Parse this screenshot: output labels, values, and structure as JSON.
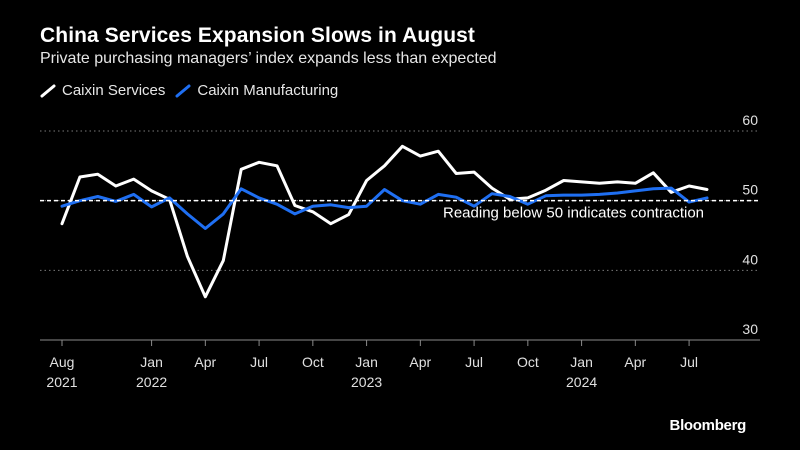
{
  "chart_data": {
    "type": "line",
    "title": "China Services Expansion Slows in August",
    "subtitle": "Private purchasing managers’ index expands less than expected",
    "source": "Bloomberg",
    "ylim": [
      30,
      60
    ],
    "yticks": [
      60,
      50,
      40,
      30
    ],
    "reference_line": {
      "value": 50,
      "label": "Reading below 50 indicates contraction"
    },
    "x": [
      "2021-08",
      "2021-09",
      "2021-10",
      "2021-11",
      "2021-12",
      "2022-01",
      "2022-02",
      "2022-03",
      "2022-04",
      "2022-05",
      "2022-06",
      "2022-07",
      "2022-08",
      "2022-09",
      "2022-10",
      "2022-11",
      "2022-12",
      "2023-01",
      "2023-02",
      "2023-03",
      "2023-04",
      "2023-05",
      "2023-06",
      "2023-07",
      "2023-08",
      "2023-09",
      "2023-10",
      "2023-11",
      "2023-12",
      "2024-01",
      "2024-02",
      "2024-03",
      "2024-04",
      "2024-05",
      "2024-06",
      "2024-07",
      "2024-08"
    ],
    "xtick_labels": [
      {
        "index": 0,
        "month": "Aug",
        "year": "2021"
      },
      {
        "index": 5,
        "month": "Jan",
        "year": "2022"
      },
      {
        "index": 8,
        "month": "Apr",
        "year": ""
      },
      {
        "index": 11,
        "month": "Jul",
        "year": ""
      },
      {
        "index": 14,
        "month": "Oct",
        "year": ""
      },
      {
        "index": 17,
        "month": "Jan",
        "year": "2023"
      },
      {
        "index": 20,
        "month": "Apr",
        "year": ""
      },
      {
        "index": 23,
        "month": "Jul",
        "year": ""
      },
      {
        "index": 26,
        "month": "Oct",
        "year": ""
      },
      {
        "index": 29,
        "month": "Jan",
        "year": "2024"
      },
      {
        "index": 32,
        "month": "Apr",
        "year": ""
      },
      {
        "index": 35,
        "month": "Jul",
        "year": ""
      }
    ],
    "series": [
      {
        "name": "Caixin Services",
        "color": "#ffffff",
        "values": [
          46.7,
          53.4,
          53.8,
          52.1,
          53.1,
          51.4,
          50.2,
          42.0,
          36.2,
          41.4,
          54.5,
          55.5,
          55.0,
          49.3,
          48.4,
          46.7,
          48.0,
          52.9,
          55.0,
          57.8,
          56.4,
          57.1,
          53.9,
          54.1,
          51.8,
          50.2,
          50.4,
          51.5,
          52.9,
          52.7,
          52.5,
          52.7,
          52.5,
          54.0,
          51.2,
          52.1,
          51.6
        ]
      },
      {
        "name": "Caixin Manufacturing",
        "color": "#1f6ff2",
        "values": [
          49.2,
          50.0,
          50.6,
          49.9,
          50.9,
          49.1,
          50.4,
          48.1,
          46.0,
          48.1,
          51.7,
          50.4,
          49.5,
          48.1,
          49.2,
          49.4,
          49.0,
          49.2,
          51.6,
          50.0,
          49.5,
          50.9,
          50.5,
          49.2,
          51.0,
          50.6,
          49.5,
          50.7,
          50.8,
          50.8,
          50.9,
          51.1,
          51.4,
          51.7,
          51.8,
          49.8,
          50.4
        ]
      }
    ]
  },
  "legend": [
    {
      "label": "Caixin Services",
      "color": "#ffffff"
    },
    {
      "label": "Caixin Manufacturing",
      "color": "#1f6ff2"
    }
  ],
  "source_label": "Bloomberg"
}
